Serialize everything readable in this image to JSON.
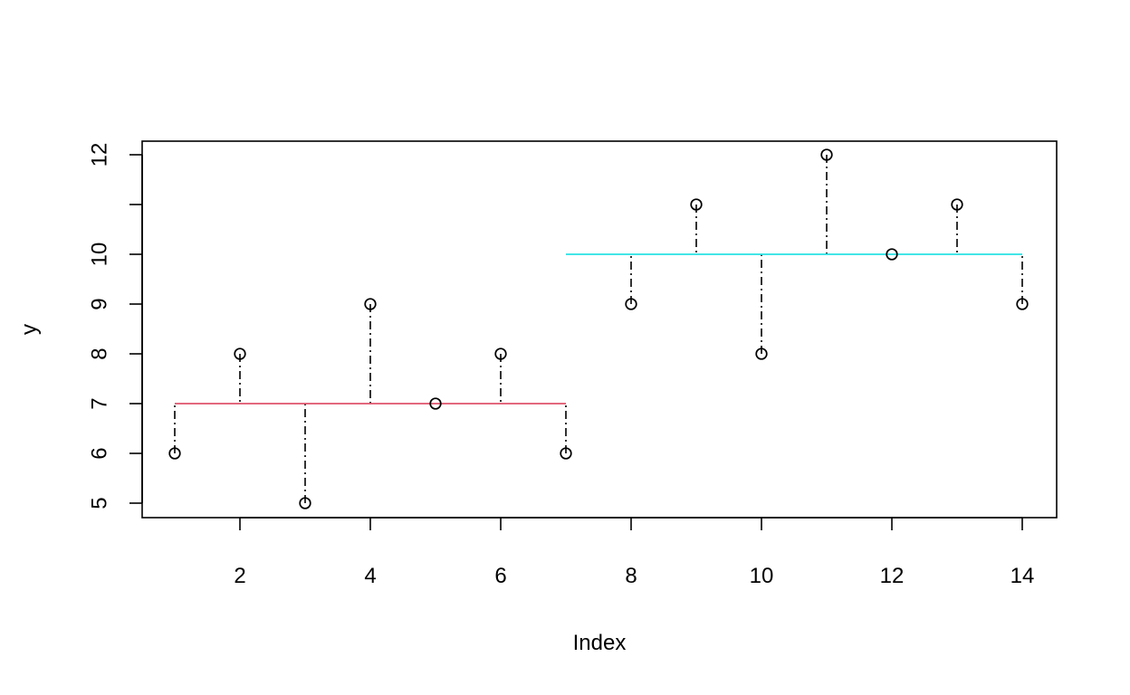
{
  "chart_data": {
    "type": "scatter",
    "title": "",
    "xlabel": "Index",
    "ylabel": "y",
    "xlim": [
      0.5,
      14.5
    ],
    "ylim": [
      4.7,
      12.3
    ],
    "xticks": [
      2,
      4,
      6,
      8,
      10,
      12,
      14
    ],
    "yticks": [
      5,
      6,
      7,
      8,
      9,
      10,
      12
    ],
    "grid": false,
    "legend": "none",
    "points": {
      "x": [
        1,
        2,
        3,
        4,
        5,
        6,
        7,
        8,
        9,
        10,
        11,
        12,
        13,
        14
      ],
      "y": [
        6,
        8,
        5,
        9,
        7,
        8,
        6,
        9,
        11,
        8,
        12,
        10,
        11,
        9
      ]
    },
    "group_means": [
      {
        "x_start": 1,
        "x_end": 7,
        "value": 7,
        "color": "#DF536B"
      },
      {
        "x_start": 7,
        "x_end": 14,
        "value": 10,
        "color": "#28E2E5"
      }
    ],
    "residual_segments": {
      "style": "dot-dash",
      "color": "#000000",
      "from": "point",
      "to": "group_mean"
    }
  }
}
